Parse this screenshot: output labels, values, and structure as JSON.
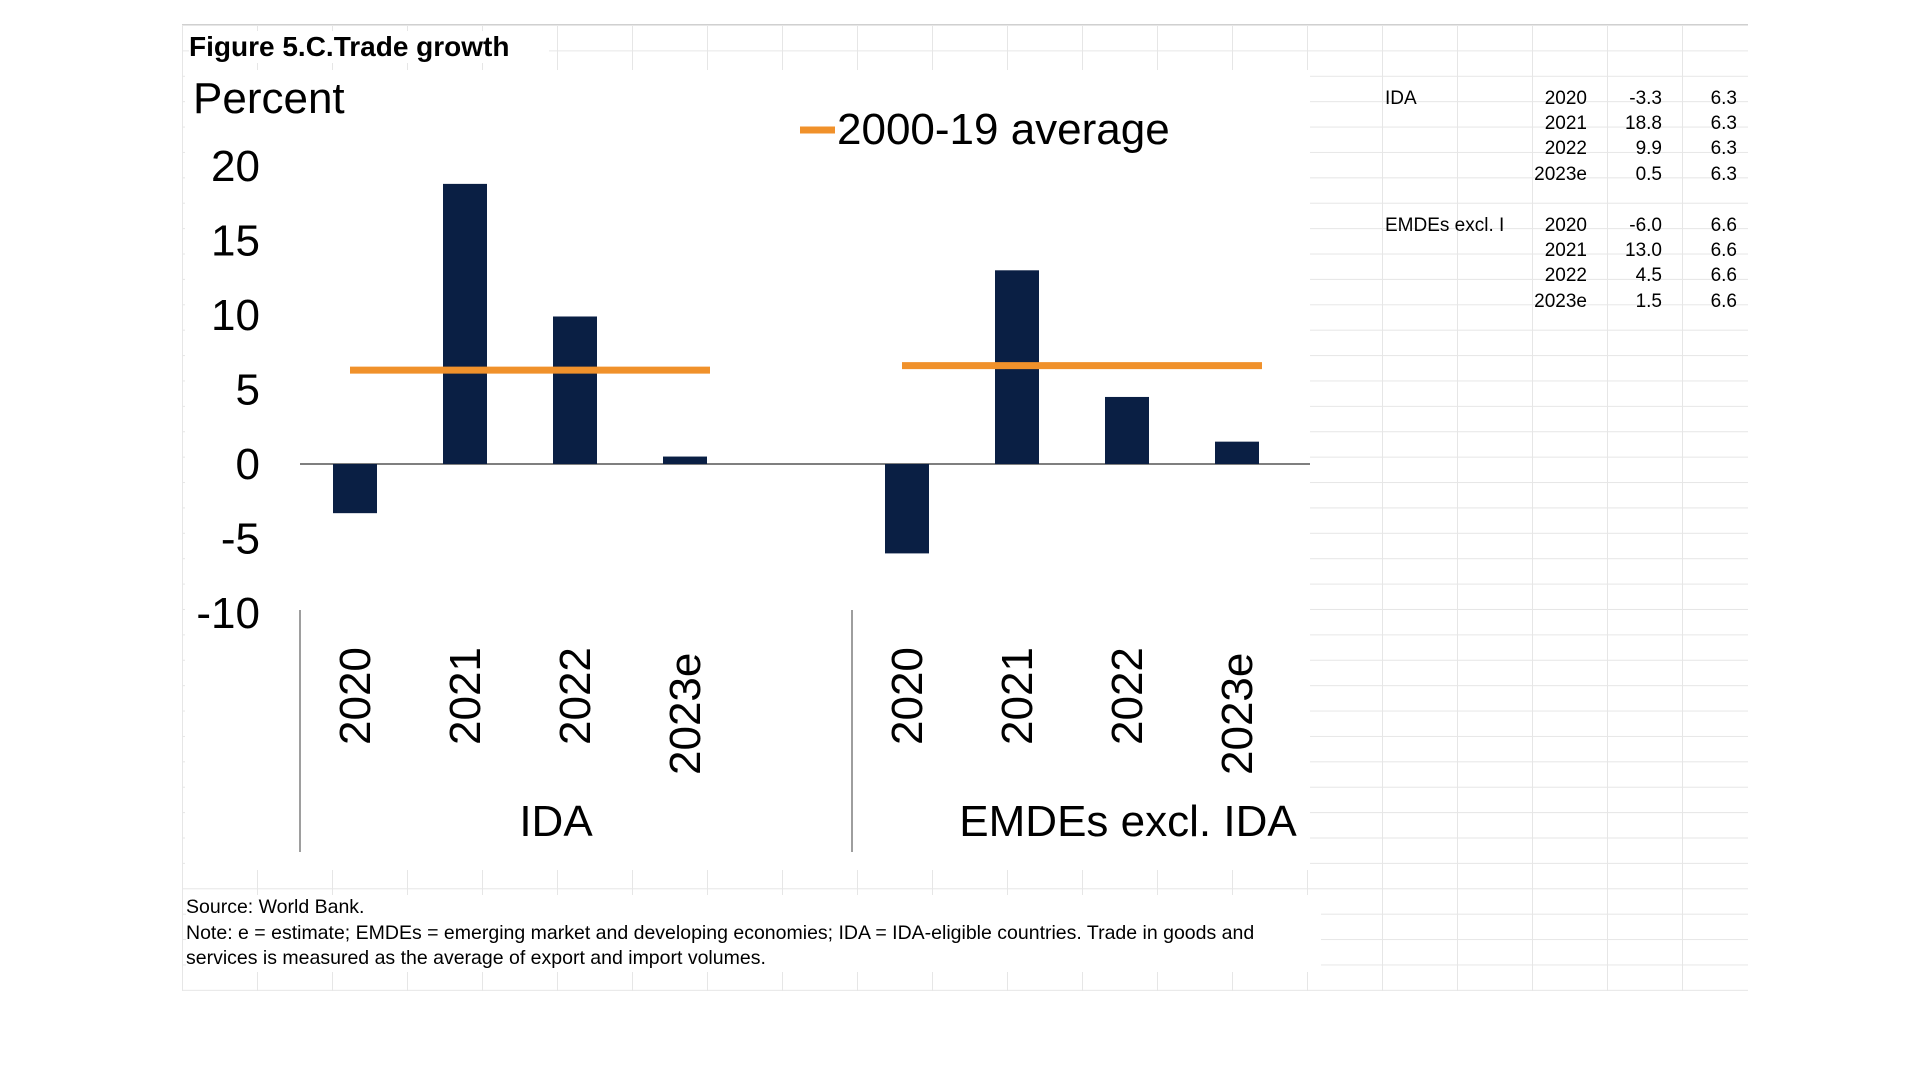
{
  "figure": {
    "title": "Figure 5.C.Trade growth",
    "source": "Source: World Bank.",
    "note": "Note: e = estimate; EMDEs = emerging market and developing economies; IDA = IDA-eligible countries. Trade in goods and services is measured as the average of export and import volumes."
  },
  "colors": {
    "bar": "#0a1f44",
    "average_line": "#f0912b",
    "axis": "#7f7f7f"
  },
  "chart_data": {
    "type": "bar",
    "ylabel": "Percent",
    "ylim": [
      -10,
      20
    ],
    "yticks": [
      20,
      15,
      10,
      5,
      0,
      -5,
      -10
    ],
    "legend": {
      "label": "2000-19 average",
      "placement": "top-right"
    },
    "groups": [
      {
        "name": "IDA",
        "categories": [
          "2020",
          "2021",
          "2022",
          "2023e"
        ],
        "values": [
          -3.3,
          18.8,
          9.9,
          0.5
        ],
        "average": 6.3
      },
      {
        "name": "EMDEs excl. IDA",
        "categories": [
          "2020",
          "2021",
          "2022",
          "2023e"
        ],
        "values": [
          -6.0,
          13.0,
          4.5,
          1.5
        ],
        "average": 6.6
      }
    ]
  },
  "table": {
    "rows": [
      {
        "group": "IDA",
        "year": "2020",
        "value": "-3.3",
        "avg": "6.3"
      },
      {
        "group": "",
        "year": "2021",
        "value": "18.8",
        "avg": "6.3"
      },
      {
        "group": "",
        "year": "2022",
        "value": "9.9",
        "avg": "6.3"
      },
      {
        "group": "",
        "year": "2023e",
        "value": "0.5",
        "avg": "6.3"
      },
      {
        "group": "",
        "year": "",
        "value": "",
        "avg": ""
      },
      {
        "group": "EMDEs excl. I",
        "year": "2020",
        "value": "-6.0",
        "avg": "6.6"
      },
      {
        "group": "",
        "year": "2021",
        "value": "13.0",
        "avg": "6.6"
      },
      {
        "group": "",
        "year": "2022",
        "value": "4.5",
        "avg": "6.6"
      },
      {
        "group": "",
        "year": "2023e",
        "value": "1.5",
        "avg": "6.6"
      }
    ]
  }
}
